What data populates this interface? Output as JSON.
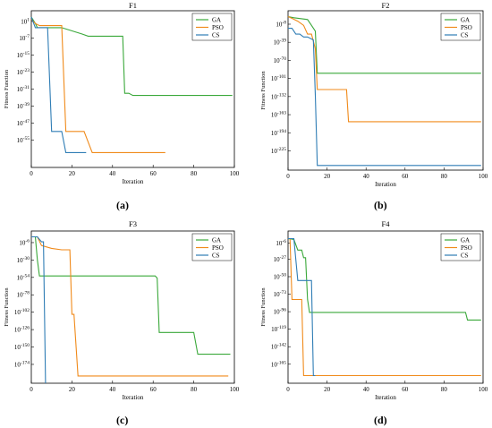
{
  "captions": [
    "(a)",
    "(b)",
    "(c)",
    "(d)"
  ],
  "colors": {
    "GA": "#3aa83a",
    "PSO": "#f08a1a",
    "CS": "#2f7db5"
  },
  "chart_data": [
    {
      "type": "line",
      "title": "F1",
      "xlabel": "Iteration",
      "ylabel": "Fitness Function",
      "xlim": [
        0,
        100
      ],
      "xticks": [
        0,
        20,
        40,
        60,
        80,
        100
      ],
      "ylog": true,
      "ylim_exp": [
        -68,
        6
      ],
      "yticks_exp": [
        1,
        -7,
        -15,
        -23,
        -31,
        -39,
        -47,
        -55
      ],
      "yticklabels": [
        "10^1",
        "10^-7",
        "10^-15",
        "10^-23",
        "10^-31",
        "10^-39",
        "10^-47",
        "10^-55"
      ],
      "legend": "top-right",
      "series": [
        {
          "name": "GA",
          "x": [
            0,
            2,
            3,
            15,
            25,
            28,
            45,
            46,
            48,
            50,
            99
          ],
          "y_exp": [
            3,
            0,
            -2,
            -2,
            -5,
            -6,
            -6,
            -33,
            -33,
            -34,
            -34
          ]
        },
        {
          "name": "PSO",
          "x": [
            0,
            2,
            4,
            10,
            15,
            17,
            26,
            30,
            66
          ],
          "y_exp": [
            2,
            0,
            -1,
            -1,
            -1,
            -51,
            -51,
            -61,
            -61
          ]
        },
        {
          "name": "CS",
          "x": [
            0,
            2,
            4,
            8,
            10,
            15,
            17,
            26,
            27
          ],
          "y_exp": [
            3,
            -2,
            -2,
            -2,
            -51,
            -51,
            -61,
            -61,
            -61
          ]
        }
      ]
    },
    {
      "type": "line",
      "title": "F2",
      "xlabel": "Iteration",
      "ylabel": "Fitness Function",
      "xlim": [
        0,
        100
      ],
      "xticks": [
        0,
        20,
        40,
        60,
        80,
        100
      ],
      "ylog": true,
      "ylim_exp": [
        -258,
        15
      ],
      "yticks_exp": [
        -8,
        -39,
        -70,
        -101,
        -132,
        -163,
        -194,
        -225
      ],
      "yticklabels": [
        "10^-8",
        "10^-39",
        "10^-70",
        "10^-101",
        "10^-132",
        "10^-163",
        "10^-194",
        "10^-225"
      ],
      "legend": "top-right",
      "series": [
        {
          "name": "GA",
          "x": [
            0,
            3,
            10,
            12,
            14,
            15,
            99
          ],
          "y_exp": [
            5,
            3,
            0,
            -10,
            -20,
            -92,
            -92
          ]
        },
        {
          "name": "PSO",
          "x": [
            0,
            2,
            5,
            8,
            10,
            12,
            14,
            15,
            30,
            31,
            99
          ],
          "y_exp": [
            5,
            2,
            -3,
            -10,
            -25,
            -25,
            -50,
            -120,
            -120,
            -175,
            -175
          ]
        },
        {
          "name": "CS",
          "x": [
            0,
            2,
            4,
            6,
            8,
            10,
            13,
            14,
            15,
            99
          ],
          "y_exp": [
            -15,
            -15,
            -25,
            -25,
            -30,
            -30,
            -35,
            -130,
            -250,
            -250
          ]
        }
      ]
    },
    {
      "type": "line",
      "title": "F3",
      "xlabel": "Iteration",
      "ylabel": "Fitness Function",
      "xlim": [
        0,
        100
      ],
      "xticks": [
        0,
        20,
        40,
        60,
        80,
        100
      ],
      "ylog": true,
      "ylim_exp": [
        -200,
        10
      ],
      "yticks_exp": [
        -6,
        -30,
        -54,
        -78,
        -102,
        -126,
        -150,
        -174
      ],
      "yticklabels": [
        "10^-6",
        "10^-30",
        "10^-54",
        "10^-78",
        "10^-102",
        "10^-126",
        "10^-150",
        "10^-174"
      ],
      "legend": "top-right",
      "series": [
        {
          "name": "GA",
          "x": [
            0,
            2,
            3,
            4,
            60,
            61,
            62,
            63,
            80,
            82,
            98
          ],
          "y_exp": [
            2,
            2,
            -30,
            -52,
            -52,
            -52,
            -55,
            -130,
            -130,
            -160,
            -160
          ]
        },
        {
          "name": "PSO",
          "x": [
            0,
            3,
            5,
            10,
            15,
            19,
            20,
            21,
            23,
            97
          ],
          "y_exp": [
            2,
            2,
            -10,
            -14,
            -16,
            -16,
            -105,
            -105,
            -190,
            -190
          ]
        },
        {
          "name": "CS",
          "x": [
            0,
            3,
            5,
            6,
            7
          ],
          "y_exp": [
            2,
            2,
            -5,
            -5,
            -200
          ]
        }
      ]
    },
    {
      "type": "line",
      "title": "F4",
      "xlabel": "Iteration",
      "ylabel": "Fitness Function",
      "xlim": [
        0,
        100
      ],
      "xticks": [
        0,
        20,
        40,
        60,
        80,
        100
      ],
      "ylog": true,
      "ylim_exp": [
        -190,
        10
      ],
      "yticks_exp": [
        -6,
        -27,
        -50,
        -73,
        -96,
        -119,
        -142,
        -165
      ],
      "yticklabels": [
        "10^-6",
        "10^-27",
        "10^-50",
        "10^-73",
        "10^-96",
        "10^-119",
        "10^-142",
        "10^-165"
      ],
      "legend": "top-right",
      "series": [
        {
          "name": "GA",
          "x": [
            0,
            3,
            5,
            7,
            8,
            9,
            10,
            11,
            91,
            92,
            99
          ],
          "y_exp": [
            0,
            -1,
            -15,
            -15,
            -25,
            -25,
            -80,
            -97,
            -97,
            -107,
            -107
          ]
        },
        {
          "name": "PSO",
          "x": [
            0,
            1,
            2,
            3,
            7,
            8,
            99
          ],
          "y_exp": [
            0,
            0,
            -80,
            -80,
            -80,
            -180,
            -180
          ]
        },
        {
          "name": "CS",
          "x": [
            0,
            3,
            5,
            6,
            12,
            13,
            14
          ],
          "y_exp": [
            0,
            0,
            -55,
            -55,
            -55,
            -180,
            -180
          ]
        }
      ]
    }
  ]
}
